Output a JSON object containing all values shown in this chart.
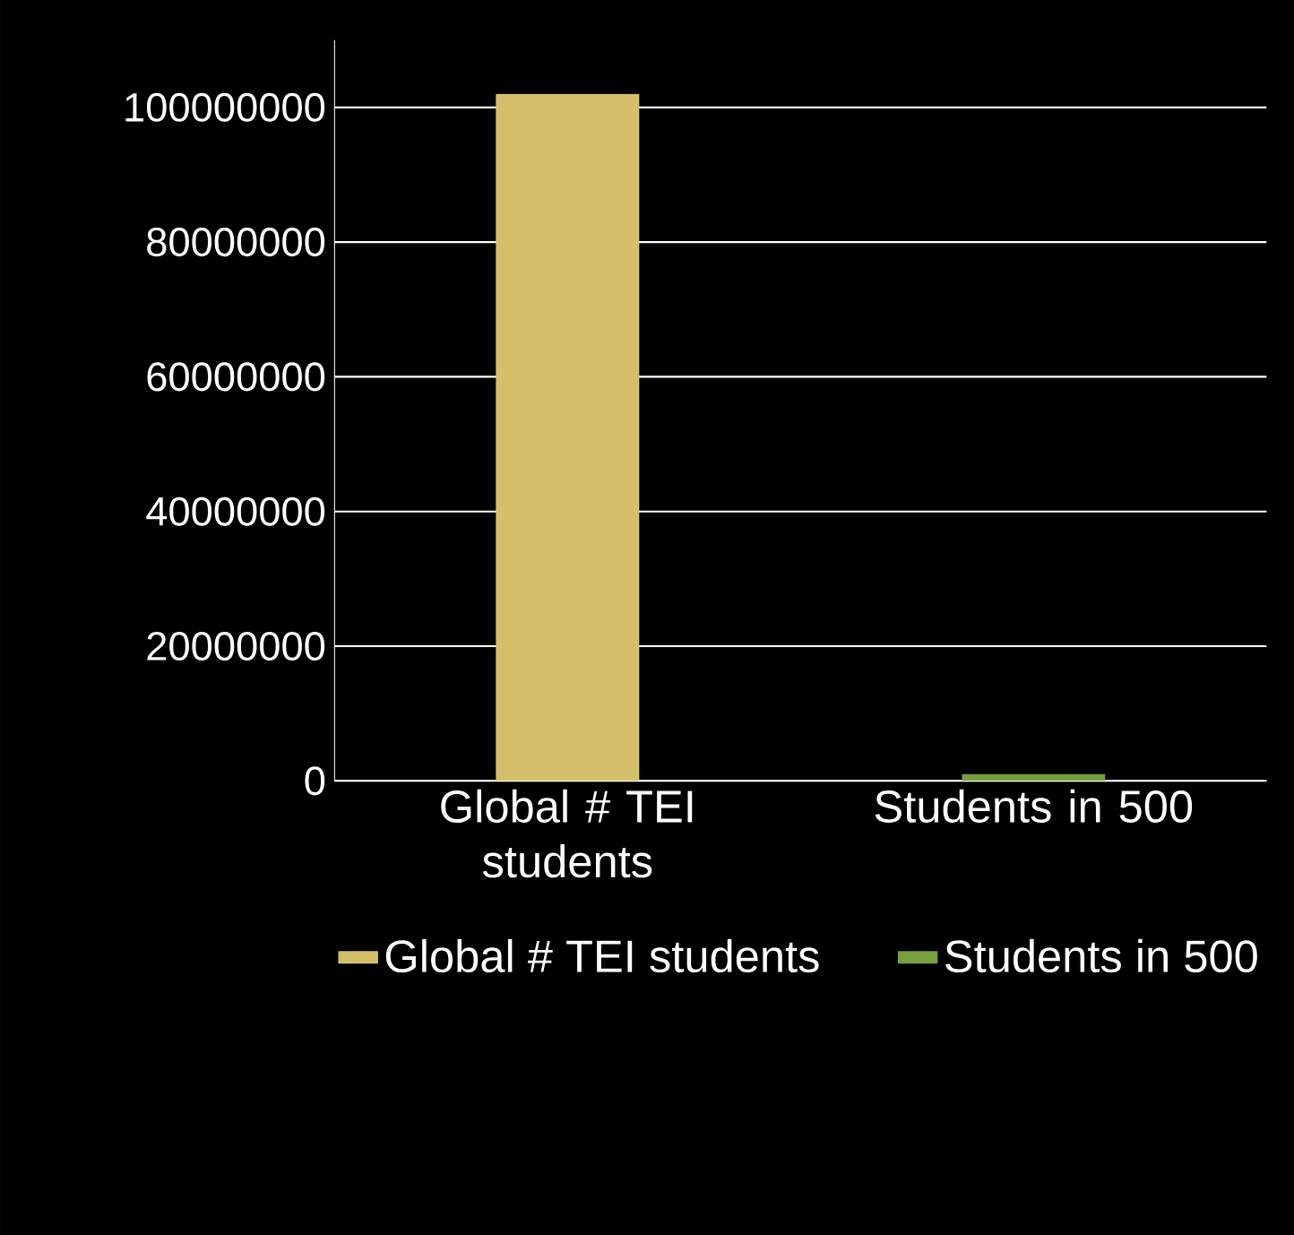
{
  "chart_data": {
    "type": "bar",
    "categories": [
      "Global # TEI students",
      "Students in 500"
    ],
    "series": [
      {
        "name": "Global # TEI students",
        "color": "#d4c06a",
        "values": [
          102000000,
          null
        ]
      },
      {
        "name": "Students in 500",
        "color": "#76a03c",
        "values": [
          null,
          1000000
        ]
      }
    ],
    "ylim": [
      0,
      110000000
    ],
    "yticks": [
      0,
      20000000,
      40000000,
      60000000,
      80000000,
      100000000
    ],
    "grid": "y",
    "legend": "bottom"
  }
}
